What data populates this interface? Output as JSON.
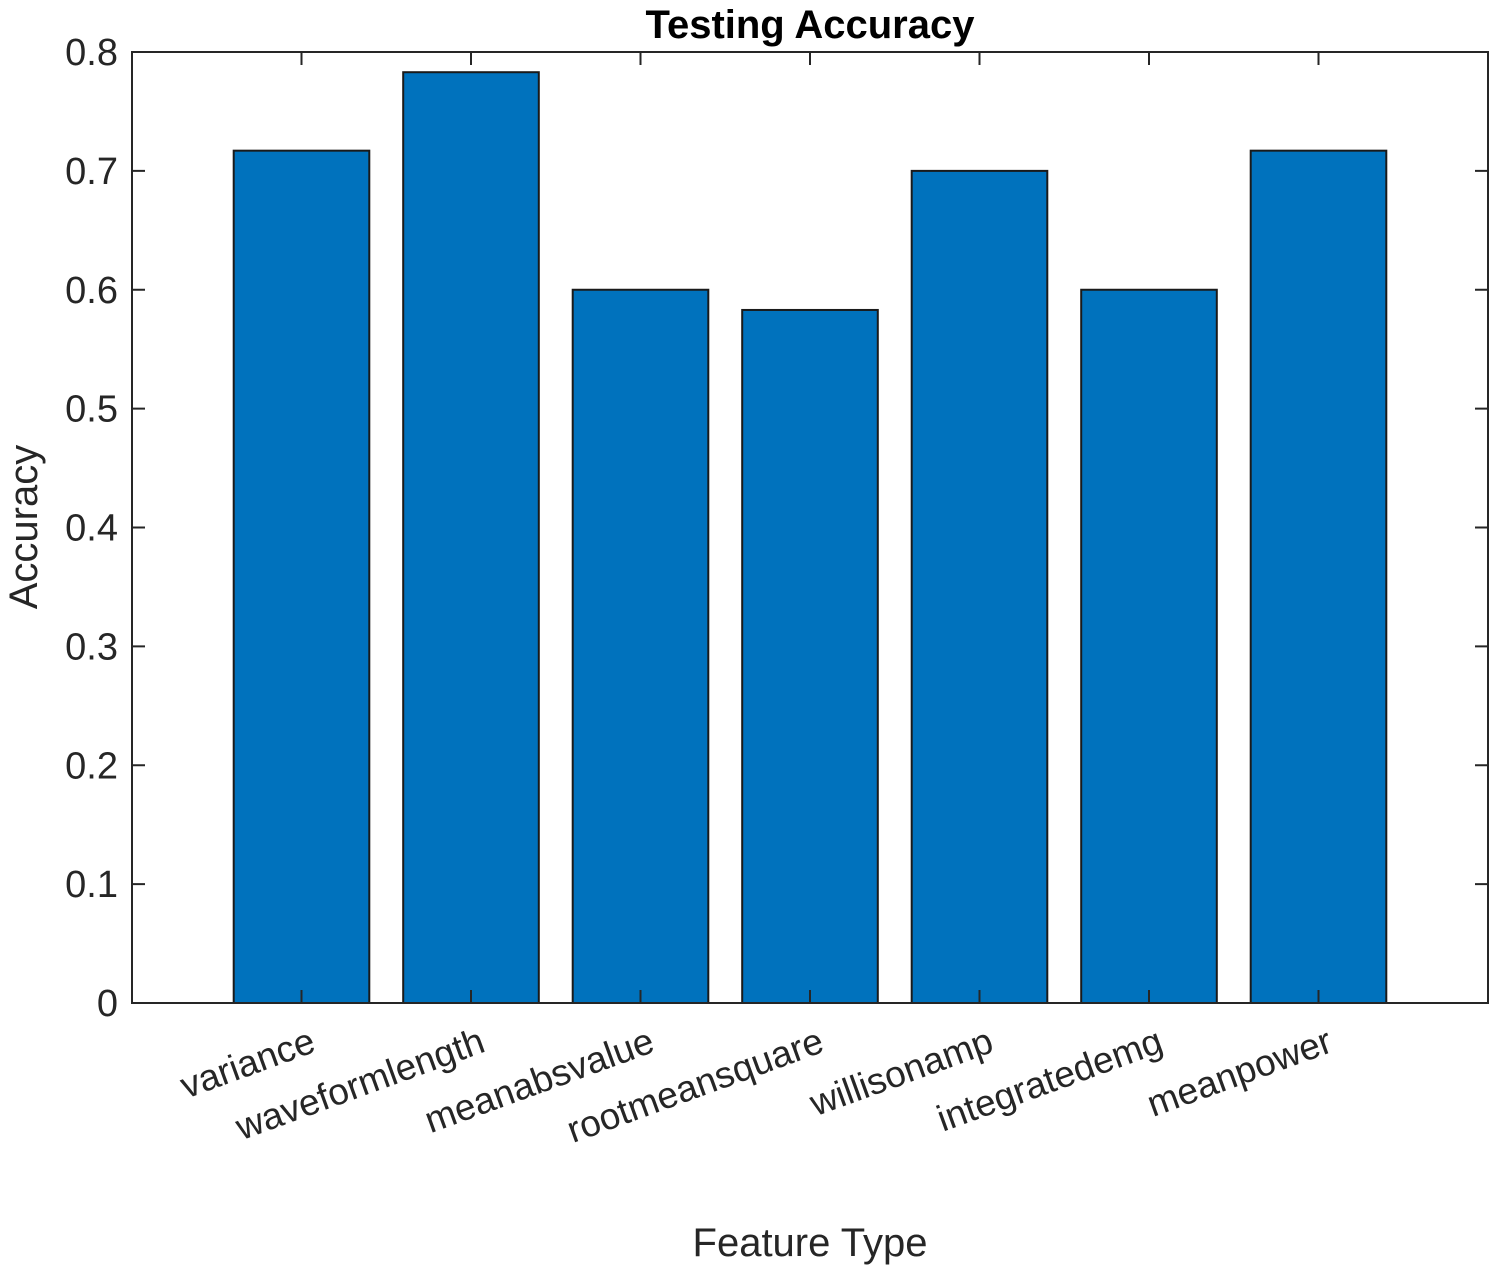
{
  "chart_data": {
    "type": "bar",
    "title": "Testing Accuracy",
    "xlabel": "Feature Type",
    "ylabel": "Accuracy",
    "categories": [
      "variance",
      "waveformlength",
      "meanabsvalue",
      "rootmeansquare",
      "willisonamp",
      "integratedemg",
      "meanpower"
    ],
    "values": [
      0.717,
      0.783,
      0.6,
      0.583,
      0.7,
      0.6,
      0.717
    ],
    "ylim": [
      0,
      0.8
    ],
    "yticks": [
      "0",
      "0.1",
      "0.2",
      "0.3",
      "0.4",
      "0.5",
      "0.6",
      "0.7",
      "0.8"
    ],
    "grid": false,
    "legend": "none",
    "bar_color": "#0072BD"
  }
}
